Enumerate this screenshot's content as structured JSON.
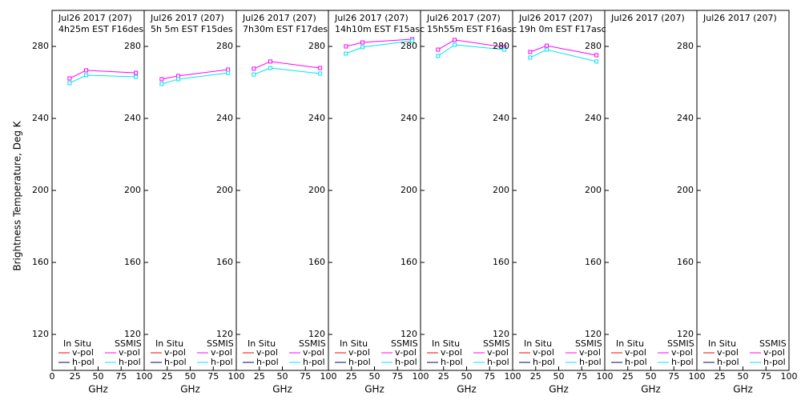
{
  "chart_data": [
    {
      "type": "line",
      "title": "Jul26 2017 (207)",
      "subtitle": "4h25m EST F16des",
      "ylabel": "Brightness Temperature, Deg K",
      "xlabel": "GHz",
      "x": [
        19,
        37,
        91
      ],
      "series": [
        {
          "color": "#ff00ff",
          "values": [
            262.2,
            266.7,
            265.3
          ]
        },
        {
          "color": "#00e5ee",
          "values": [
            259.6,
            264,
            263.1
          ]
        }
      ],
      "xlim": [
        0,
        100
      ],
      "ylim": [
        100,
        300
      ],
      "xticks": [
        0,
        25,
        50,
        75,
        100
      ],
      "yticks": [
        120,
        160,
        200,
        240,
        280
      ]
    },
    {
      "type": "line",
      "title": "Jul26 2017 (207)",
      "subtitle": "5h 5m EST F15des",
      "xlabel": "GHz",
      "x": [
        19,
        37,
        91
      ],
      "series": [
        {
          "color": "#ff00ff",
          "values": [
            261.8,
            263.6,
            267.1
          ]
        },
        {
          "color": "#00e5ee",
          "values": [
            259.1,
            261.8,
            265.3
          ]
        }
      ],
      "xlim": [
        0,
        100
      ],
      "ylim": [
        100,
        300
      ],
      "xticks": [
        25,
        50,
        75,
        100
      ],
      "yticks": [
        120,
        160,
        200,
        240,
        280
      ]
    },
    {
      "type": "line",
      "title": "Jul26 2017 (207)",
      "subtitle": "7h30m EST F17des",
      "xlabel": "GHz",
      "x": [
        19,
        37,
        91
      ],
      "series": [
        {
          "color": "#ff00ff",
          "values": [
            267.6,
            271.6,
            268
          ]
        },
        {
          "color": "#00e5ee",
          "values": [
            264.4,
            268,
            264.9
          ]
        }
      ],
      "xlim": [
        0,
        100
      ],
      "ylim": [
        100,
        300
      ],
      "xticks": [
        25,
        50,
        75,
        100
      ],
      "yticks": [
        120,
        160,
        200,
        240,
        280
      ]
    },
    {
      "type": "line",
      "title": "Jul26 2017 (207)",
      "subtitle": "14h10m EST F15asc",
      "xlabel": "GHz",
      "x": [
        19,
        37,
        91
      ],
      "series": [
        {
          "color": "#ff00ff",
          "values": [
            280,
            282.2,
            284
          ]
        },
        {
          "color": "#00e5ee",
          "values": [
            276,
            279.6,
            283.1
          ]
        }
      ],
      "xlim": [
        0,
        100
      ],
      "ylim": [
        100,
        300
      ],
      "xticks": [
        25,
        50,
        75,
        100
      ],
      "yticks": [
        120,
        160,
        200,
        240,
        280
      ]
    },
    {
      "type": "line",
      "title": "Jul26 2017 (207)",
      "subtitle": "15h55m EST F16asc",
      "xlabel": "GHz",
      "x": [
        19,
        37,
        91
      ],
      "series": [
        {
          "color": "#ff00ff",
          "values": [
            278.2,
            283.6,
            279.6
          ]
        },
        {
          "color": "#00e5ee",
          "values": [
            274.7,
            280.9,
            278.2
          ]
        }
      ],
      "xlim": [
        0,
        100
      ],
      "ylim": [
        100,
        300
      ],
      "xticks": [
        25,
        50,
        75,
        100
      ],
      "yticks": [
        120,
        160,
        200,
        240,
        280
      ]
    },
    {
      "type": "line",
      "title": "Jul26 2017 (207)",
      "subtitle": "19h 0m EST F17asc",
      "xlabel": "GHz",
      "x": [
        19,
        37,
        91
      ],
      "series": [
        {
          "color": "#ff00ff",
          "values": [
            276.9,
            280.4,
            275.1
          ]
        },
        {
          "color": "#00e5ee",
          "values": [
            273.8,
            278.2,
            271.6
          ]
        }
      ],
      "xlim": [
        0,
        100
      ],
      "ylim": [
        100,
        300
      ],
      "xticks": [
        25,
        50,
        75,
        100
      ],
      "yticks": [
        120,
        160,
        200,
        240,
        280
      ]
    },
    {
      "type": "line",
      "title": "Jul26 2017 (207)",
      "xlabel": "GHz",
      "x": [],
      "series": [],
      "xlim": [
        0,
        100
      ],
      "ylim": [
        100,
        300
      ],
      "xticks": [
        25,
        50,
        75,
        100
      ],
      "yticks": [
        120,
        160,
        200,
        240,
        280
      ]
    },
    {
      "type": "line",
      "title": "Jul26 2017 (207)",
      "xlabel": "GHz",
      "x": [],
      "series": [],
      "xlim": [
        0,
        100
      ],
      "ylim": [
        100,
        300
      ],
      "xticks": [
        25,
        50,
        75,
        100
      ],
      "yticks": [
        120,
        160,
        200,
        240,
        280
      ]
    }
  ],
  "legend": [
    {
      "name": "In Situ",
      "items": [
        {
          "name": "v-pol",
          "color": "#ff0000"
        },
        {
          "name": "h-pol",
          "color": "#000080"
        }
      ]
    },
    {
      "name": "SSMIS",
      "items": [
        {
          "name": "v-pol",
          "color": "#ff00ff"
        },
        {
          "name": "h-pol",
          "color": "#00e5ee"
        }
      ]
    }
  ]
}
